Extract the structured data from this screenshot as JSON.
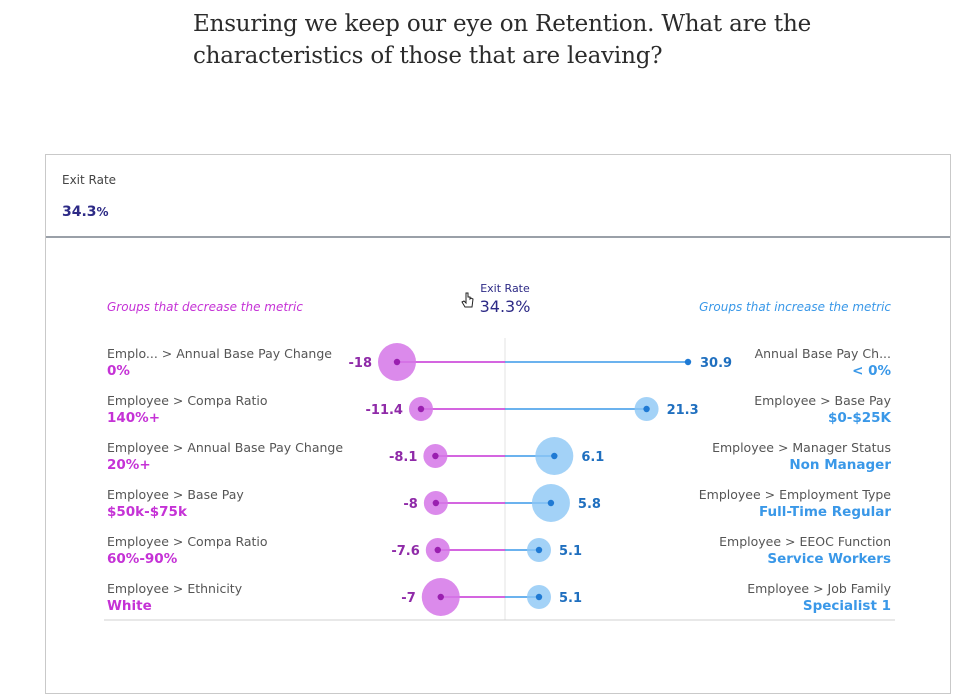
{
  "headline": "Ensuring we keep our eye on Retention. What are the characteristics of those that are leaving?",
  "card": {
    "label": "Exit Rate",
    "value": "34.3",
    "unit": "%"
  },
  "colors": {
    "decrease": "#c532d6",
    "increase": "#3a98e8",
    "dark_blue": "#2d2a86",
    "gray_text": "#555555"
  },
  "chart_data": {
    "type": "diverging-dot",
    "title": "Exit Rate",
    "baseline_label": "34.3%",
    "left_header": "Groups that decrease the metric",
    "right_header": "Groups that increase the metric",
    "decrease": [
      {
        "path": "Emplo... > Annual Base Pay Change",
        "group": "0%",
        "value": -18,
        "size": "large"
      },
      {
        "path": "Employee > Compa Ratio",
        "group": "140%+",
        "value": -11.4,
        "size": "small"
      },
      {
        "path": "Employee > Annual Base Pay Change",
        "group": "20%+",
        "value": -8.1,
        "size": "small"
      },
      {
        "path": "Employee > Base Pay",
        "group": "$50k-$75k",
        "value": -8,
        "size": "small"
      },
      {
        "path": "Employee > Compa Ratio",
        "group": "60%-90%",
        "value": -7.6,
        "size": "small"
      },
      {
        "path": "Employee > Ethnicity",
        "group": "White",
        "value": -7,
        "size": "large"
      }
    ],
    "increase": [
      {
        "path": "Annual Base Pay Ch...",
        "group": "< 0%",
        "value": 30.9,
        "size": "tiny"
      },
      {
        "path": "Employee > Base Pay",
        "group": "$0-$25K",
        "value": 21.3,
        "size": "small"
      },
      {
        "path": "Employee > Manager Status",
        "group": "Non Manager",
        "value": 6.1,
        "size": "large"
      },
      {
        "path": "Employee > Employment Type",
        "group": "Full-Time Regular",
        "value": 5.8,
        "size": "large"
      },
      {
        "path": "Employee > EEOC Function",
        "group": "Service Workers",
        "value": 5.1,
        "size": "small"
      },
      {
        "path": "Employee > Job Family",
        "group": "Specialist 1",
        "value": 5.1,
        "size": "small"
      }
    ]
  }
}
